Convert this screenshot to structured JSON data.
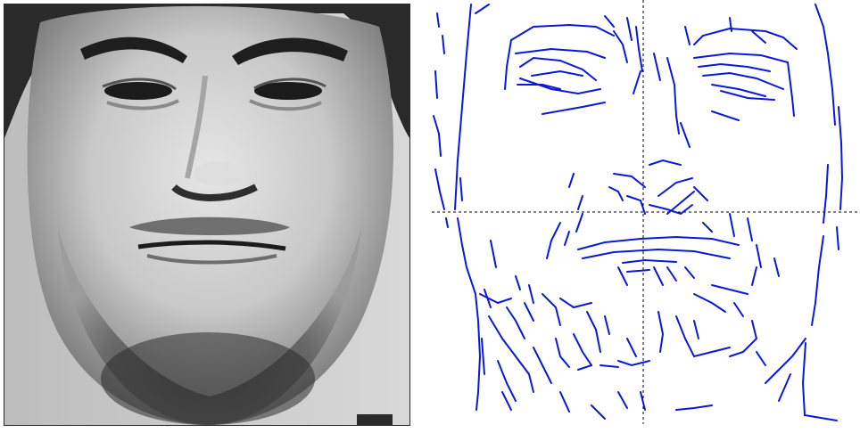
{
  "figure": {
    "left_panel": {
      "kind": "grayscale face photograph",
      "alt": ""
    },
    "right_panel": {
      "kind": "line-segment face sketch",
      "alt": ""
    }
  },
  "colors": {
    "sketch_line": "#0a19d6",
    "axis_dash": "#000000",
    "photo_bg": "#cfcfcf",
    "page_bg": "#ffffff"
  }
}
